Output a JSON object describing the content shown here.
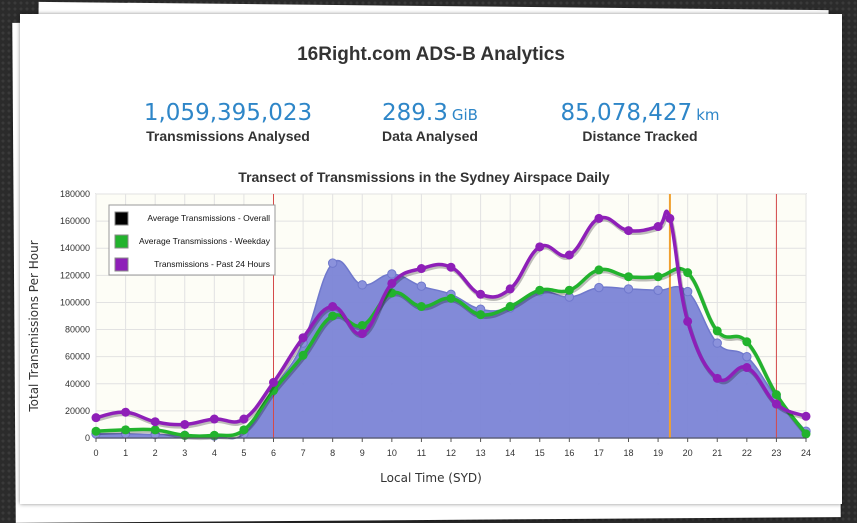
{
  "page": {
    "title": "16Right.com ADS-B Analytics"
  },
  "stats": [
    {
      "value": "1,059,395,023",
      "unit": "",
      "label": "Transmissions Analysed"
    },
    {
      "value": "289.3",
      "unit": "GiB",
      "label": "Data Analysed"
    },
    {
      "value": "85,078,427",
      "unit": "km",
      "label": "Distance Tracked"
    }
  ],
  "colors": {
    "overall": "#7b84d6",
    "weekday": "#22b32d",
    "past24": "#8e1fb8",
    "marker_line": "#d44a4a",
    "now_line": "#f0a030"
  },
  "chart_data": {
    "type": "area",
    "title": "Transect of Transmissions in the Sydney Airspace Daily",
    "xlabel": "Local Time (SYD)",
    "ylabel": "Total Transmissions Per Hour",
    "xlim": [
      0,
      24
    ],
    "ylim": [
      0,
      180000
    ],
    "x_ticks": [
      0,
      1,
      2,
      3,
      4,
      5,
      6,
      7,
      8,
      9,
      10,
      11,
      12,
      13,
      14,
      15,
      16,
      17,
      18,
      19,
      20,
      21,
      22,
      23,
      24
    ],
    "y_ticks": [
      0,
      20000,
      40000,
      60000,
      80000,
      100000,
      120000,
      140000,
      160000,
      180000
    ],
    "grid": true,
    "legend_position": "top-left",
    "vertical_markers": [
      6,
      19.4,
      23
    ],
    "series": [
      {
        "name": "Average Transmissions - Overall",
        "legend_color": "#000000",
        "style": "area",
        "x": [
          0,
          1,
          2,
          3,
          4,
          5,
          6,
          7,
          8,
          9,
          10,
          11,
          12,
          13,
          14,
          15,
          16,
          17,
          18,
          19,
          20,
          21,
          22,
          23,
          24
        ],
        "y": [
          3000,
          3000,
          2500,
          2000,
          1500,
          3000,
          36000,
          70000,
          129000,
          113000,
          121000,
          112000,
          106000,
          95000,
          96000,
          108000,
          104000,
          111000,
          110000,
          109000,
          108000,
          70000,
          60000,
          30000,
          5000
        ]
      },
      {
        "name": "Average Transmissions - Weekday",
        "legend_color": "#22b32d",
        "style": "line",
        "x": [
          0,
          1,
          2,
          3,
          4,
          5,
          6,
          7,
          8,
          9,
          10,
          11,
          12,
          13,
          14,
          15,
          16,
          17,
          18,
          19,
          20,
          21,
          22,
          23,
          24
        ],
        "y": [
          5000,
          6000,
          6000,
          2000,
          2000,
          6000,
          35000,
          61000,
          90000,
          83000,
          107000,
          97000,
          103000,
          91000,
          97000,
          109000,
          109000,
          124000,
          119000,
          119000,
          122000,
          79000,
          71000,
          32000,
          3000
        ]
      },
      {
        "name": "Transmissions - Past 24 Hours",
        "legend_color": "#8e1fb8",
        "style": "line",
        "x": [
          0,
          1,
          2,
          3,
          4,
          5,
          6,
          7,
          8,
          9,
          10,
          11,
          12,
          13,
          14,
          15,
          16,
          17,
          18,
          19,
          19.4,
          20,
          21,
          22,
          23,
          24
        ],
        "y": [
          15000,
          19000,
          12000,
          10000,
          14000,
          14000,
          41000,
          74000,
          97000,
          77000,
          114000,
          125000,
          126000,
          106000,
          110000,
          141000,
          135000,
          162000,
          153000,
          156000,
          162000,
          86000,
          44000,
          52000,
          25000,
          16000
        ]
      }
    ]
  }
}
